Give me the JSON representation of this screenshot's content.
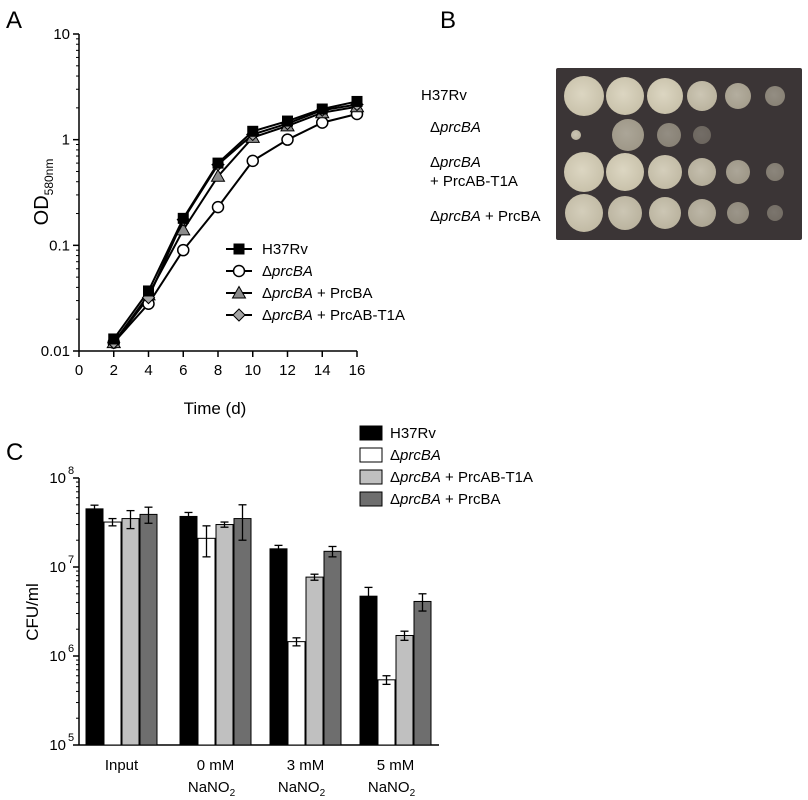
{
  "panels": {
    "a": "A",
    "b": "B",
    "c": "C"
  },
  "chart_data": [
    {
      "type": "line",
      "panel": "A",
      "xlabel": "Time (d)",
      "ylabel_main": "OD",
      "ylabel_sub": "580nm",
      "x": [
        2,
        4,
        6,
        8,
        10,
        12,
        14,
        16
      ],
      "xlim": [
        0,
        16
      ],
      "x_ticks": [
        "0",
        "2",
        "4",
        "6",
        "8",
        "10",
        "12",
        "14",
        "16"
      ],
      "ylim": [
        0.01,
        10
      ],
      "y_scale": "log",
      "y_ticks": [
        "0.01",
        "0.1",
        "1",
        "10"
      ],
      "legend_position": "lower-right",
      "series": [
        {
          "name": "H37Rv",
          "marker": "filled-square",
          "values": [
            0.013,
            0.037,
            0.18,
            0.6,
            1.2,
            1.5,
            1.95,
            2.3
          ]
        },
        {
          "name_prefix": "Δ",
          "name_italic": "prcBA",
          "name_suffix": "",
          "marker": "open-circle",
          "values": [
            0.012,
            0.028,
            0.09,
            0.23,
            0.63,
            1.0,
            1.45,
            1.75
          ]
        },
        {
          "name_prefix": "Δ",
          "name_italic": "prcBA",
          "name_suffix": " + PrcBA",
          "marker": "gray-triangle",
          "values": [
            0.012,
            0.034,
            0.14,
            0.45,
            1.05,
            1.35,
            1.8,
            2.05
          ]
        },
        {
          "name_prefix": "Δ",
          "name_italic": "prcBA",
          "name_suffix": " + PrcAB-T1A",
          "marker": "gray-diamond",
          "values": [
            0.012,
            0.032,
            0.175,
            0.58,
            1.12,
            1.42,
            1.9,
            2.15
          ]
        }
      ],
      "colors": {
        "line": "#000000",
        "triangle": "#8c8c8c",
        "diamond": "#a6a6a6"
      }
    },
    {
      "type": "bar",
      "panel": "C",
      "ylabel": "CFU/ml",
      "y_scale": "log",
      "ylim": [
        100000,
        100000000
      ],
      "y_ticks": [
        {
          "base": "10",
          "exp": "5"
        },
        {
          "base": "10",
          "exp": "6"
        },
        {
          "base": "10",
          "exp": "7"
        },
        {
          "base": "10",
          "exp": "8"
        }
      ],
      "categories": [
        {
          "line1": "Input"
        },
        {
          "line1": "0 mM",
          "line2": "NaNO",
          "sub": "2"
        },
        {
          "line1": "3 mM",
          "line2": "NaNO",
          "sub": "2"
        },
        {
          "line1": "5 mM",
          "line2": "NaNO",
          "sub": "2"
        }
      ],
      "legend_position": "top-right",
      "series": [
        {
          "name": "H37Rv",
          "color": "#000000",
          "values": [
            45000000,
            37000000,
            16000000,
            4700000
          ],
          "errors": [
            4500000,
            4000000,
            1500000,
            1200000
          ]
        },
        {
          "name_prefix": "Δ",
          "name_italic": "prcBA",
          "name_suffix": "",
          "color": "#ffffff",
          "values": [
            32000000,
            21000000,
            1450000,
            540000
          ],
          "errors": [
            3000000,
            8000000,
            150000,
            60000
          ]
        },
        {
          "name_prefix": "Δ",
          "name_italic": "prcBA",
          "name_suffix": " + PrcAB-T1A",
          "color": "#c0c0c0",
          "values": [
            35000000,
            30000000,
            7700000,
            1700000
          ],
          "errors": [
            8000000,
            2000000,
            600000,
            200000
          ]
        },
        {
          "name_prefix": "Δ",
          "name_italic": "prcBA",
          "name_suffix": " + PrcBA",
          "color": "#6e6e6e",
          "values": [
            39000000,
            35000000,
            15000000,
            4100000
          ],
          "errors": [
            8000000,
            15000000,
            2000000,
            900000
          ]
        }
      ]
    }
  ],
  "plate_b": {
    "rows": [
      {
        "name": "H37Rv"
      },
      {
        "prefix": "Δ",
        "italic": "prcBA"
      },
      {
        "prefix": "Δ",
        "italic": "prcBA",
        "line2": "+ PrcAB-T1A"
      },
      {
        "prefix": "Δ",
        "italic": "prcBA",
        "suffix": " + PrcBA"
      }
    ],
    "colors": {
      "background": "#3b3536",
      "colony": "#dcd6c2"
    }
  }
}
